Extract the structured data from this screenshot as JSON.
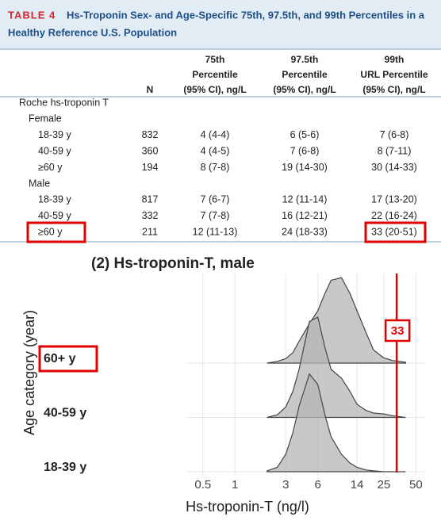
{
  "table": {
    "label": "TABLE 4",
    "title": [
      "Hs-Troponin Sex- and Age-Specific 75th, 97.5th, and 99th Percentiles in a",
      "Healthy Reference U.S. Population"
    ],
    "columns": [
      [
        "N"
      ],
      [
        "75th",
        "Percentile",
        "(95% CI), ng/L"
      ],
      [
        "97.5th",
        "Percentile",
        "(95% CI), ng/L"
      ],
      [
        "99th",
        "URL Percentile",
        "(95% CI), ng/L"
      ]
    ],
    "rows": [
      [
        "Roche hs-troponin T"
      ],
      [
        "Female"
      ],
      [
        "18-39 y",
        "832",
        "4 (4-4)",
        "6 (5-6)",
        "7 (6-8)"
      ],
      [
        "40-59 y",
        "360",
        "4 (4-5)",
        "7 (6-8)",
        "8 (7-11)"
      ],
      [
        "≥60 y",
        "194",
        "8 (7-8)",
        "19 (14-30)",
        "30 (14-33)"
      ],
      [
        "Male"
      ],
      [
        "18-39 y",
        "817",
        "7 (6-7)",
        "12 (11-14)",
        "17 (13-20)"
      ],
      [
        "40-59 y",
        "332",
        "7 (7-8)",
        "16 (12-21)",
        "22 (16-24)"
      ],
      [
        "≥60 y",
        "211",
        "12 (11-13)",
        "24 (18-33)",
        "33 (20-51)"
      ]
    ]
  },
  "chart_data": {
    "type": "ridgeline",
    "title": "(2) Hs-troponin-T, male",
    "x_label": "Hs-troponin-T (ng/l)",
    "y_label": "Age category (year)",
    "categories": [
      "18-39 y",
      "40-59 y",
      "60+ y"
    ],
    "x": [
      2,
      2.5,
      3,
      3.5,
      4,
      5,
      6,
      7,
      8,
      10,
      12,
      14,
      17,
      20,
      25,
      30,
      40
    ],
    "series": [
      {
        "name": "18-39 y",
        "color": "#b5b5b5",
        "values": [
          0.01,
          0.05,
          0.2,
          0.45,
          0.75,
          1.12,
          1.0,
          0.65,
          0.4,
          0.2,
          0.1,
          0.05,
          0.02,
          0.01,
          0,
          0,
          0
        ]
      },
      {
        "name": "40-59 y",
        "color": "#b5b5b5",
        "values": [
          0,
          0.03,
          0.12,
          0.3,
          0.55,
          1.1,
          1.15,
          0.8,
          0.55,
          0.45,
          0.3,
          0.15,
          0.08,
          0.05,
          0.04,
          0.02,
          0
        ]
      },
      {
        "name": "60+ y",
        "color": "#b5b5b5",
        "values": [
          0,
          0.02,
          0.05,
          0.12,
          0.25,
          0.45,
          0.6,
          0.8,
          0.95,
          0.98,
          0.8,
          0.6,
          0.35,
          0.15,
          0.06,
          0.03,
          0.01
        ]
      }
    ],
    "log_x": true,
    "xlim": [
      0.35,
      60
    ],
    "xticks": [
      0.5,
      1,
      3,
      6,
      14,
      25,
      50
    ],
    "reference_line": {
      "value": 33,
      "label": "33",
      "color": "#e00000"
    }
  }
}
